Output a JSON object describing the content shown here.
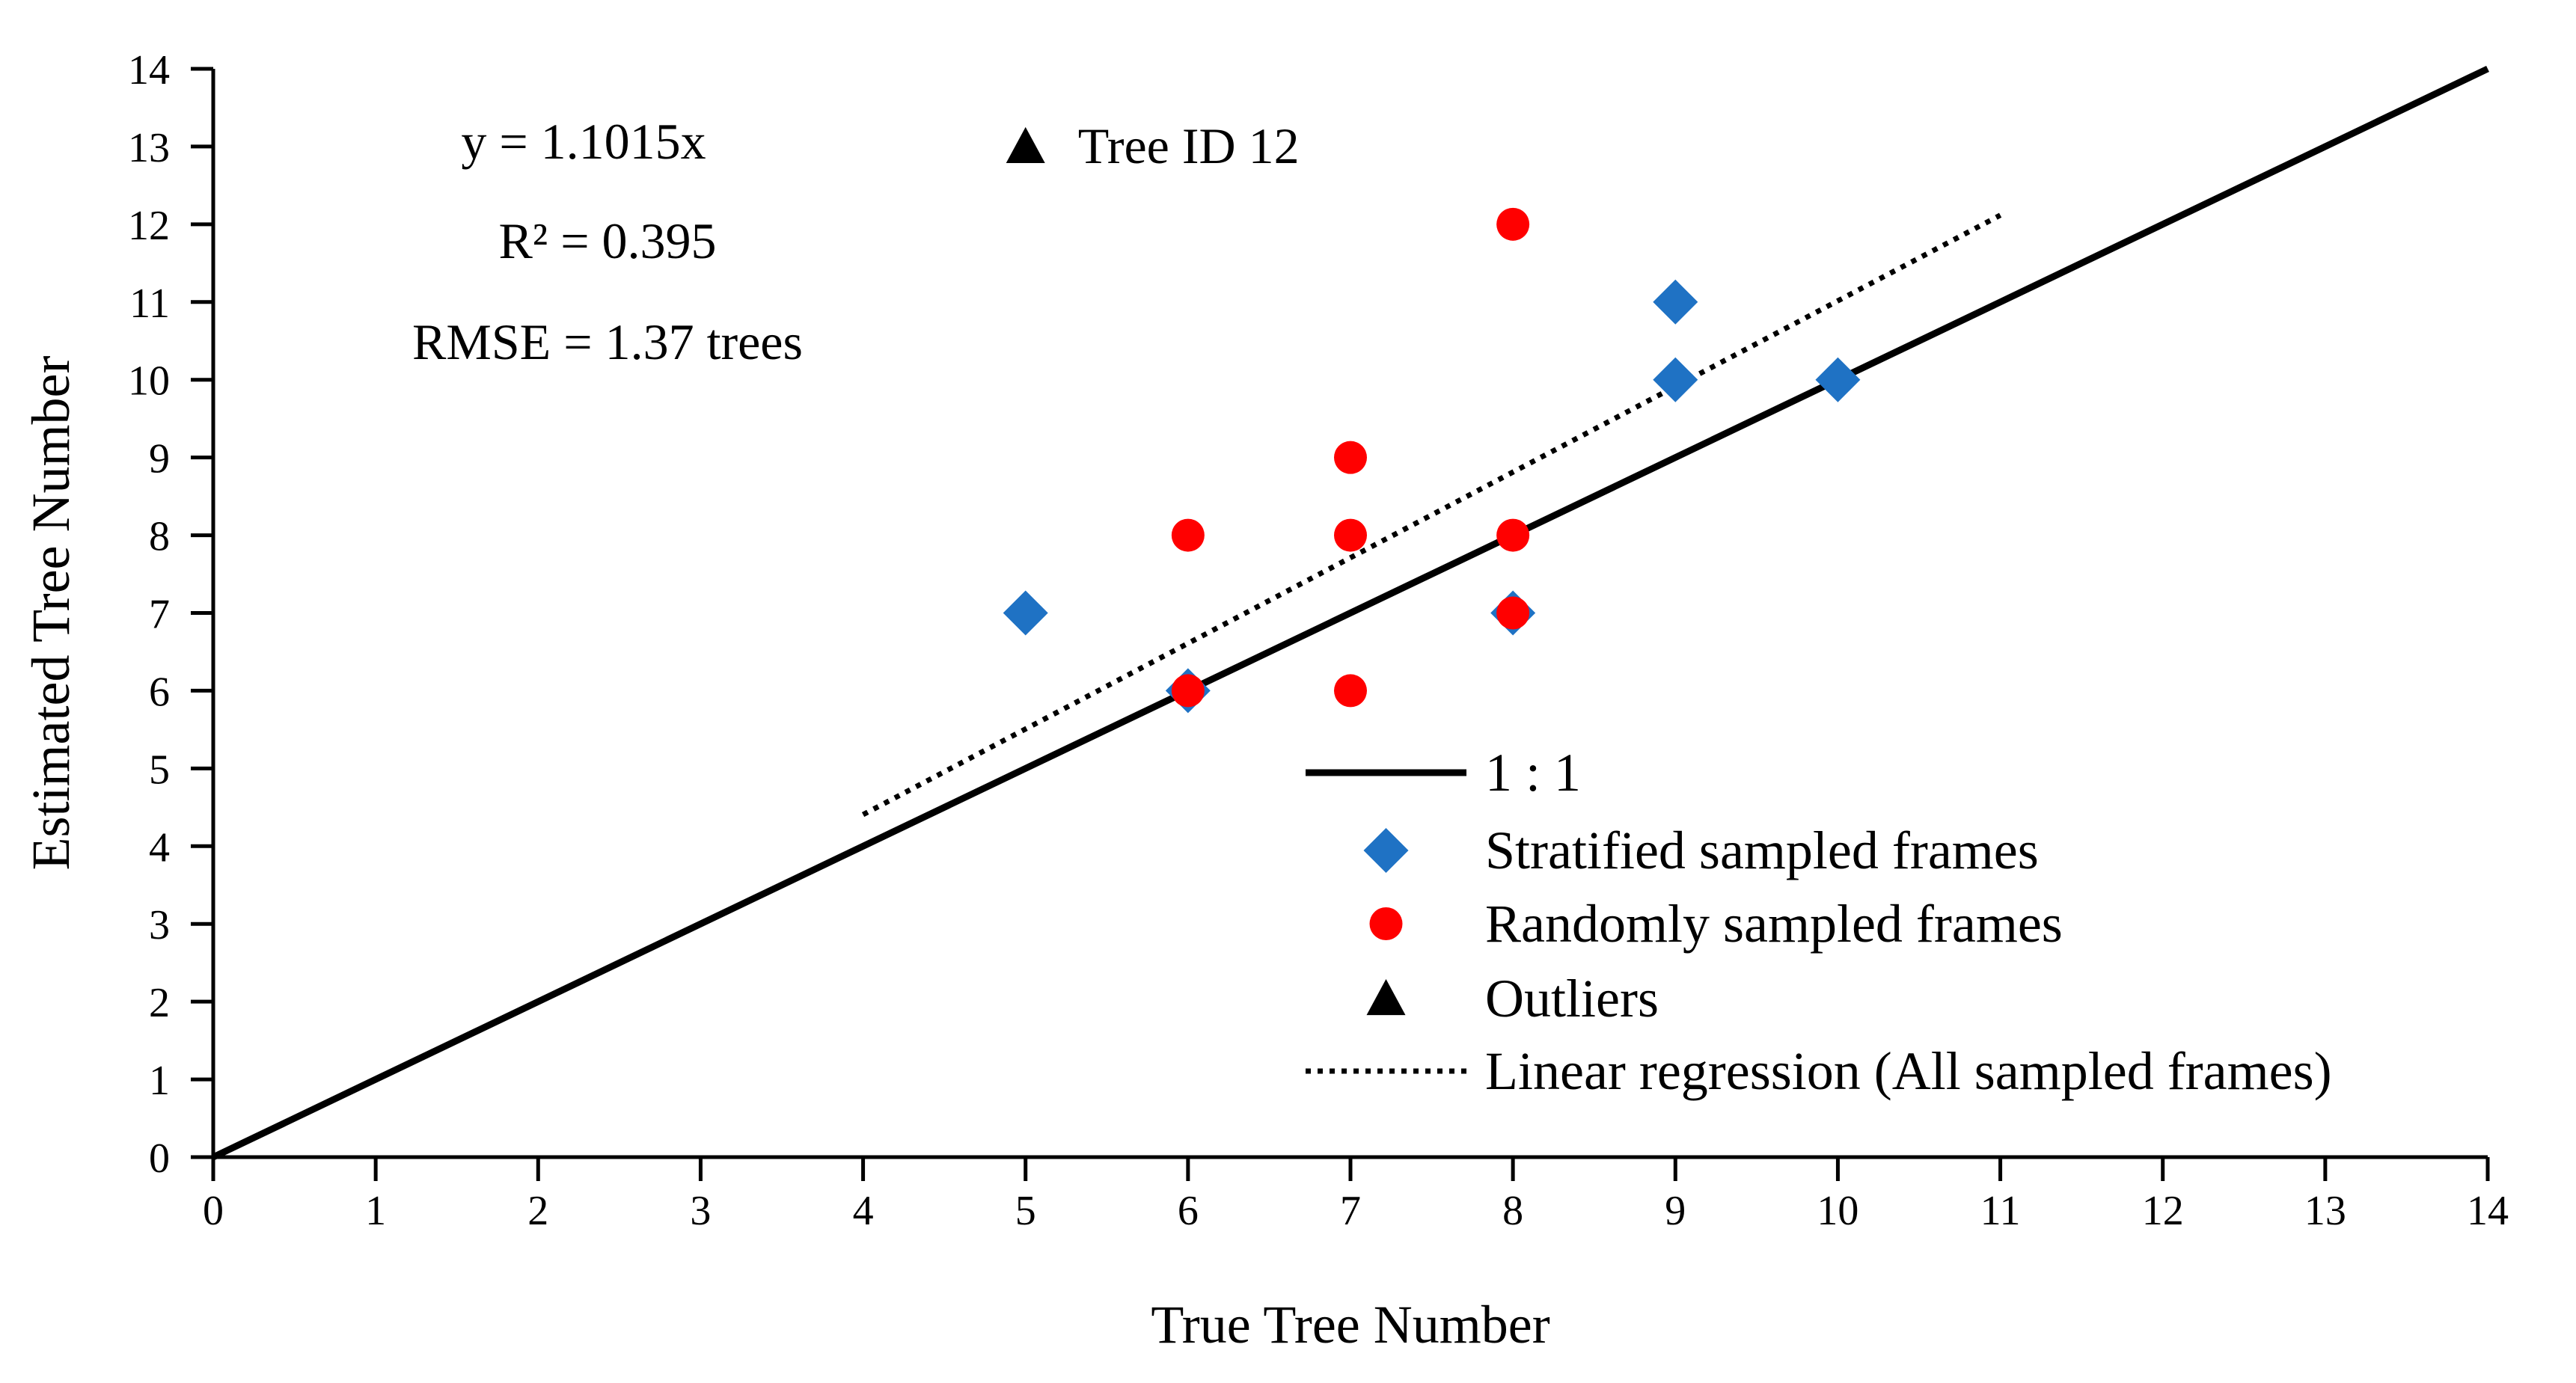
{
  "chart_data": {
    "type": "scatter",
    "title": "",
    "xlabel": "True Tree Number",
    "ylabel": "Estimated Tree Number",
    "xlim": [
      0,
      14
    ],
    "ylim": [
      0,
      14
    ],
    "x_ticks": [
      0,
      1,
      2,
      3,
      4,
      5,
      6,
      7,
      8,
      9,
      10,
      11,
      12,
      13,
      14
    ],
    "y_ticks": [
      0,
      1,
      2,
      3,
      4,
      5,
      6,
      7,
      8,
      9,
      10,
      11,
      12,
      13,
      14
    ],
    "grid": false,
    "annotations": {
      "equation": "y = 1.1015x",
      "r2": "R² = 0.395",
      "rmse": "RMSE = 1.37 trees"
    },
    "series": [
      {
        "name": "1 : 1",
        "kind": "line",
        "style": "solid",
        "color": "#000000",
        "points": [
          [
            0,
            0
          ],
          [
            14,
            14
          ]
        ]
      },
      {
        "name": "Stratified sampled frames",
        "kind": "scatter",
        "marker": "diamond",
        "color": "#1f72c4",
        "points": [
          [
            5,
            7
          ],
          [
            6,
            6
          ],
          [
            8,
            7
          ],
          [
            9,
            10
          ],
          [
            9,
            11
          ],
          [
            10,
            10
          ]
        ]
      },
      {
        "name": "Randomly sampled frames",
        "kind": "scatter",
        "marker": "circle",
        "color": "#ff0000",
        "points": [
          [
            6,
            6
          ],
          [
            6,
            8
          ],
          [
            7,
            6
          ],
          [
            7,
            8
          ],
          [
            7,
            9
          ],
          [
            8,
            7
          ],
          [
            8,
            8
          ],
          [
            8,
            12
          ]
        ]
      },
      {
        "name": "Outliers",
        "kind": "scatter",
        "marker": "triangle",
        "color": "#000000",
        "points": [
          [
            5,
            13
          ]
        ],
        "point_labels": [
          "Tree ID 12"
        ]
      },
      {
        "name": "Linear regression (All sampled frames)",
        "kind": "line",
        "style": "dotted",
        "color": "#000000",
        "slope": 1.1015,
        "points": [
          [
            4,
            4.406
          ],
          [
            11,
            12.117
          ]
        ]
      }
    ],
    "legend": {
      "position": "bottom-right",
      "entries": [
        "1 : 1",
        "Stratified sampled frames",
        "Randomly sampled frames",
        "Outliers",
        "Linear regression (All sampled frames)"
      ]
    }
  }
}
